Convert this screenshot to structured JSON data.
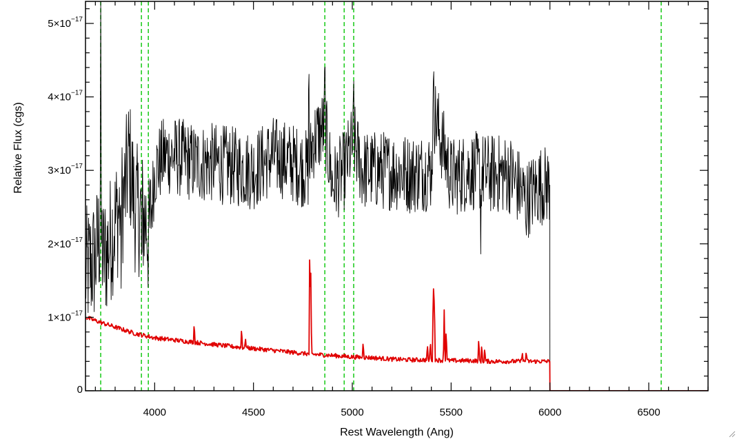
{
  "chart_data": {
    "type": "line",
    "xlabel": "Rest Wavelength (Ang)",
    "ylabel": "Relative Flux (cgs)",
    "xlim": [
      3650,
      6800
    ],
    "ylim": [
      0,
      5.3e-17
    ],
    "x_ticks": [
      4000,
      4500,
      5000,
      5500,
      6000,
      6500
    ],
    "x_tick_labels": [
      "4000",
      "4500",
      "5000",
      "5500",
      "6000",
      "6500"
    ],
    "y_ticks": [
      0,
      1e-17,
      2e-17,
      3e-17,
      4e-17,
      5e-17
    ],
    "y_tick_labels": [
      {
        "mantissa": "0",
        "exponent": ""
      },
      {
        "mantissa": "1×10",
        "exponent": "−17"
      },
      {
        "mantissa": "2×10",
        "exponent": "−17"
      },
      {
        "mantissa": "3×10",
        "exponent": "−17"
      },
      {
        "mantissa": "4×10",
        "exponent": "−17"
      },
      {
        "mantissa": "5×10",
        "exponent": "−17"
      }
    ],
    "grid": false,
    "series": [
      {
        "color": "#000000",
        "style": "noisy",
        "x": [
          3650,
          3700,
          3727,
          3740,
          3760,
          3800,
          3850,
          3870,
          3900,
          3935,
          3960,
          3970,
          4000,
          4050,
          4100,
          4200,
          4300,
          4400,
          4500,
          4600,
          4700,
          4780,
          4800,
          4861,
          4900,
          4959,
          5007,
          5050,
          5100,
          5200,
          5300,
          5400,
          5412,
          5500,
          5600,
          5700,
          5800,
          5880,
          5950,
          5998,
          6000,
          6800
        ],
        "y": [
          1.6e-17,
          1.8e-17,
          2.2e-17,
          1.8e-17,
          1.9e-17,
          2.3e-17,
          2.7e-17,
          3.2e-17,
          2.5e-17,
          2.4e-17,
          2.3e-17,
          2e-17,
          3e-17,
          3.2e-17,
          3.2e-17,
          3.1e-17,
          3.1e-17,
          3.05e-17,
          3e-17,
          3.2e-17,
          3.1e-17,
          3e-17,
          3.4e-17,
          3.6e-17,
          2.8e-17,
          3e-17,
          3.4e-17,
          3e-17,
          3e-17,
          3e-17,
          2.95e-17,
          3e-17,
          3.8e-17,
          2.9e-17,
          3e-17,
          2.95e-17,
          2.95e-17,
          2.6e-17,
          2.8e-17,
          2.8e-17,
          0,
          0
        ],
        "spikes": [
          [
            3727,
            5.3e-17
          ],
          [
            3830,
            1.3e-17
          ],
          [
            3935,
            1.5e-17
          ],
          [
            4780,
            4.8e-17
          ],
          [
            4861,
            4.7e-17
          ],
          [
            5007,
            4.3e-17
          ],
          [
            5412,
            4.4e-17
          ],
          [
            5650,
            1.8e-17
          ],
          [
            5880,
            2.1e-17
          ]
        ]
      },
      {
        "color": "#e00000",
        "style": "model",
        "x": [
          3650,
          3750,
          3900,
          4000,
          4200,
          4400,
          4600,
          4780,
          4900,
          5000,
          5100,
          5200,
          5300,
          5400,
          5500,
          5600,
          5700,
          5800,
          5900,
          5998,
          6000,
          6800
        ],
        "y": [
          1e-17,
          9.1e-18,
          7.8e-18,
          7.2e-18,
          6.6e-18,
          6e-18,
          5.5e-18,
          5e-18,
          4.8e-18,
          4.6e-18,
          4.5e-18,
          4.3e-18,
          4.2e-18,
          4.2e-18,
          4.1e-18,
          4.1e-18,
          4e-18,
          4e-18,
          4e-18,
          4e-18,
          0,
          0
        ],
        "emission_lines": [
          [
            4200,
            9.5e-18
          ],
          [
            4440,
            8.8e-18
          ],
          [
            4460,
            7e-18
          ],
          [
            4785,
            2.2e-17
          ],
          [
            4790,
            1.6e-17
          ],
          [
            5055,
            7e-18
          ],
          [
            5380,
            6.5e-18
          ],
          [
            5395,
            7e-18
          ],
          [
            5410,
            1.7e-17
          ],
          [
            5415,
            1.5e-17
          ],
          [
            5465,
            1.1e-17
          ],
          [
            5475,
            9e-18
          ],
          [
            5640,
            7.5e-18
          ],
          [
            5655,
            6.5e-18
          ],
          [
            5670,
            6e-18
          ],
          [
            5860,
            5.5e-18
          ],
          [
            5880,
            5.5e-18
          ]
        ]
      }
    ],
    "reference_lines": {
      "color": "#22cc22",
      "style": "dashed",
      "x": [
        3727,
        3933,
        3968,
        4861,
        4959,
        5007,
        6563
      ]
    }
  }
}
